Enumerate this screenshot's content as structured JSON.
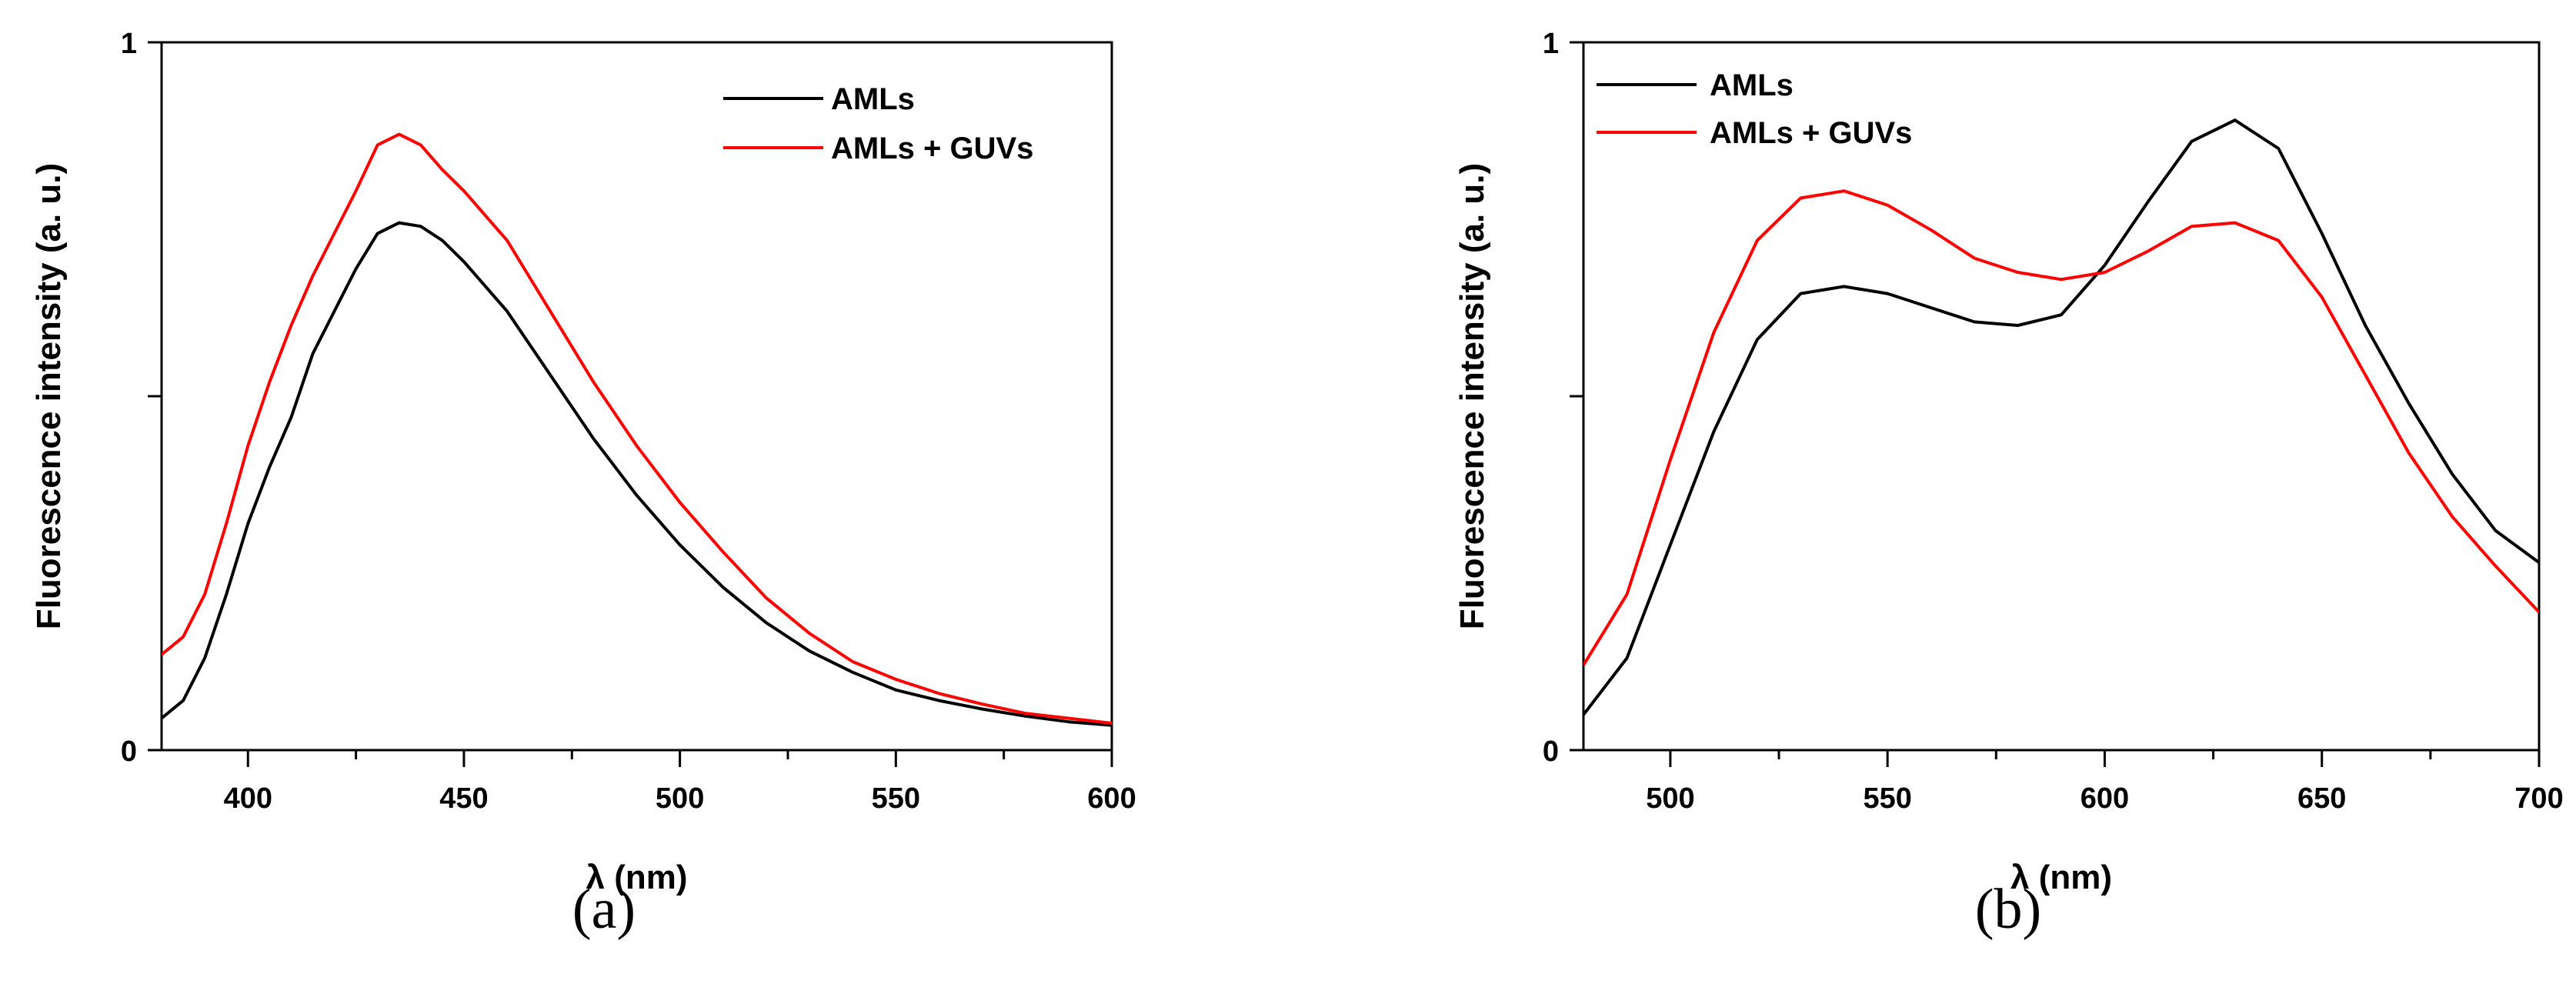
{
  "chart_data": [
    {
      "type": "line",
      "panel_label": "(a)",
      "xlabel": "λ (nm)",
      "ylabel": "Fluorescence intensity (a. u.)",
      "xlim": [
        380,
        600
      ],
      "ylim": [
        0,
        1
      ],
      "x_ticks": [
        400,
        450,
        500,
        550,
        600
      ],
      "y_tick_labels": [
        {
          "value": 0,
          "label": "0"
        },
        {
          "value": 1,
          "label": "1"
        }
      ],
      "legend_position": "top-right",
      "series": [
        {
          "name": "AMLs",
          "color": "#000000",
          "x": [
            380,
            385,
            390,
            395,
            400,
            405,
            410,
            415,
            420,
            425,
            430,
            435,
            440,
            445,
            450,
            460,
            470,
            480,
            490,
            500,
            510,
            520,
            530,
            540,
            550,
            560,
            570,
            580,
            590,
            600
          ],
          "y": [
            0.045,
            0.07,
            0.13,
            0.22,
            0.32,
            0.4,
            0.47,
            0.56,
            0.62,
            0.68,
            0.73,
            0.745,
            0.74,
            0.72,
            0.69,
            0.62,
            0.53,
            0.44,
            0.36,
            0.29,
            0.23,
            0.18,
            0.14,
            0.11,
            0.085,
            0.07,
            0.058,
            0.048,
            0.04,
            0.035
          ]
        },
        {
          "name": "AMLs + GUVs",
          "color": "#ff0000",
          "x": [
            380,
            385,
            390,
            395,
            400,
            405,
            410,
            415,
            420,
            425,
            430,
            435,
            440,
            445,
            450,
            460,
            470,
            480,
            490,
            500,
            510,
            520,
            530,
            540,
            550,
            560,
            570,
            580,
            590,
            600
          ],
          "y": [
            0.135,
            0.16,
            0.22,
            0.32,
            0.43,
            0.52,
            0.6,
            0.67,
            0.73,
            0.79,
            0.855,
            0.87,
            0.855,
            0.82,
            0.79,
            0.72,
            0.62,
            0.52,
            0.43,
            0.35,
            0.28,
            0.215,
            0.165,
            0.125,
            0.1,
            0.08,
            0.065,
            0.052,
            0.045,
            0.038
          ]
        }
      ]
    },
    {
      "type": "line",
      "panel_label": "(b)",
      "xlabel": "λ (nm)",
      "ylabel": "Fluorescence intensity (a. u.)",
      "xlim": [
        480,
        700
      ],
      "ylim": [
        0,
        1
      ],
      "x_ticks": [
        500,
        550,
        600,
        650,
        700
      ],
      "y_tick_labels": [
        {
          "value": 0,
          "label": "0"
        },
        {
          "value": 1,
          "label": "1"
        }
      ],
      "legend_position": "top-left",
      "series": [
        {
          "name": "AMLs",
          "color": "#000000",
          "x": [
            480,
            490,
            500,
            510,
            520,
            530,
            540,
            550,
            560,
            570,
            580,
            590,
            600,
            610,
            620,
            630,
            640,
            650,
            660,
            670,
            680,
            690,
            700
          ],
          "y": [
            0.05,
            0.13,
            0.29,
            0.45,
            0.58,
            0.645,
            0.655,
            0.645,
            0.625,
            0.605,
            0.6,
            0.615,
            0.685,
            0.775,
            0.86,
            0.89,
            0.85,
            0.73,
            0.6,
            0.49,
            0.39,
            0.31,
            0.265
          ]
        },
        {
          "name": "AMLs + GUVs",
          "color": "#ff0000",
          "x": [
            480,
            490,
            500,
            510,
            520,
            530,
            540,
            550,
            560,
            570,
            580,
            590,
            600,
            610,
            620,
            630,
            640,
            650,
            660,
            670,
            680,
            690,
            700
          ],
          "y": [
            0.12,
            0.22,
            0.41,
            0.59,
            0.72,
            0.78,
            0.79,
            0.77,
            0.735,
            0.695,
            0.675,
            0.665,
            0.675,
            0.705,
            0.74,
            0.745,
            0.72,
            0.64,
            0.53,
            0.42,
            0.33,
            0.26,
            0.195
          ]
        }
      ]
    }
  ],
  "captions": {
    "a": "(a)",
    "b": "(b)"
  }
}
